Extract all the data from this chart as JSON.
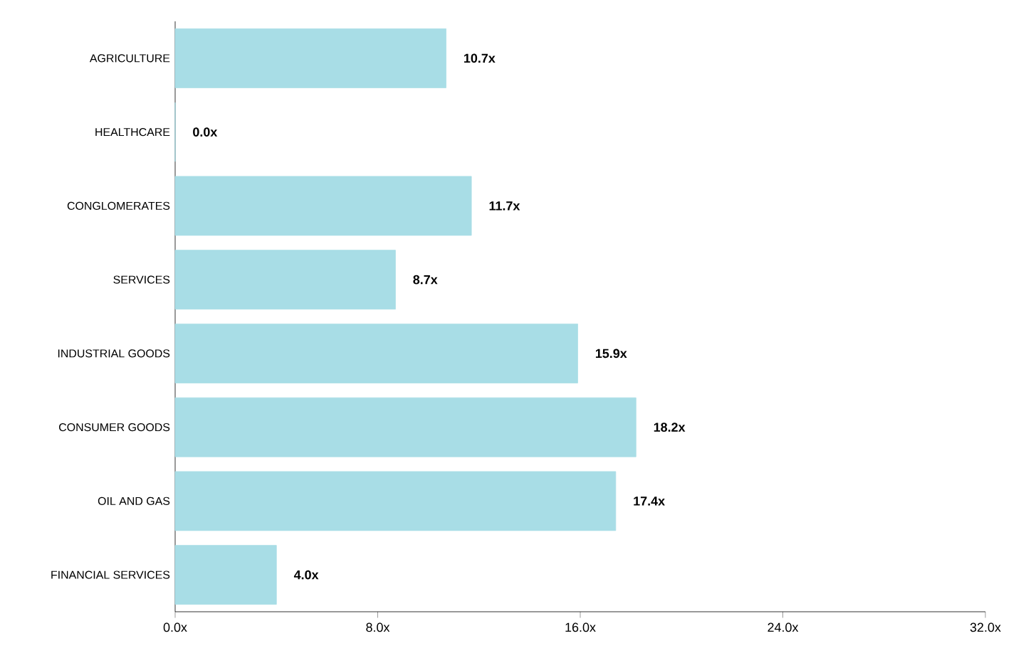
{
  "chart_data": {
    "type": "bar",
    "orientation": "horizontal",
    "categories": [
      "AGRICULTURE",
      "HEALTHCARE",
      "CONGLOMERATES",
      "SERVICES",
      "INDUSTRIAL GOODS",
      "CONSUMER GOODS",
      "OIL AND GAS",
      "FINANCIAL SERVICES"
    ],
    "values": [
      10.7,
      0.0,
      11.7,
      8.7,
      15.9,
      18.2,
      17.4,
      4.0
    ],
    "value_labels": [
      "10.7x",
      "0.0x",
      "11.7x",
      "8.7x",
      "15.9x",
      "18.2x",
      "17.4x",
      "4.0x"
    ],
    "color": "#a8dde6",
    "xlim": [
      0,
      32
    ],
    "xticks": [
      {
        "value": 0,
        "label": "0.0x"
      },
      {
        "value": 8,
        "label": "8.0x"
      },
      {
        "value": 16,
        "label": "16.0x"
      },
      {
        "value": 24,
        "label": "24.0x"
      },
      {
        "value": 32,
        "label": "32.0x"
      }
    ],
    "grid": false
  }
}
